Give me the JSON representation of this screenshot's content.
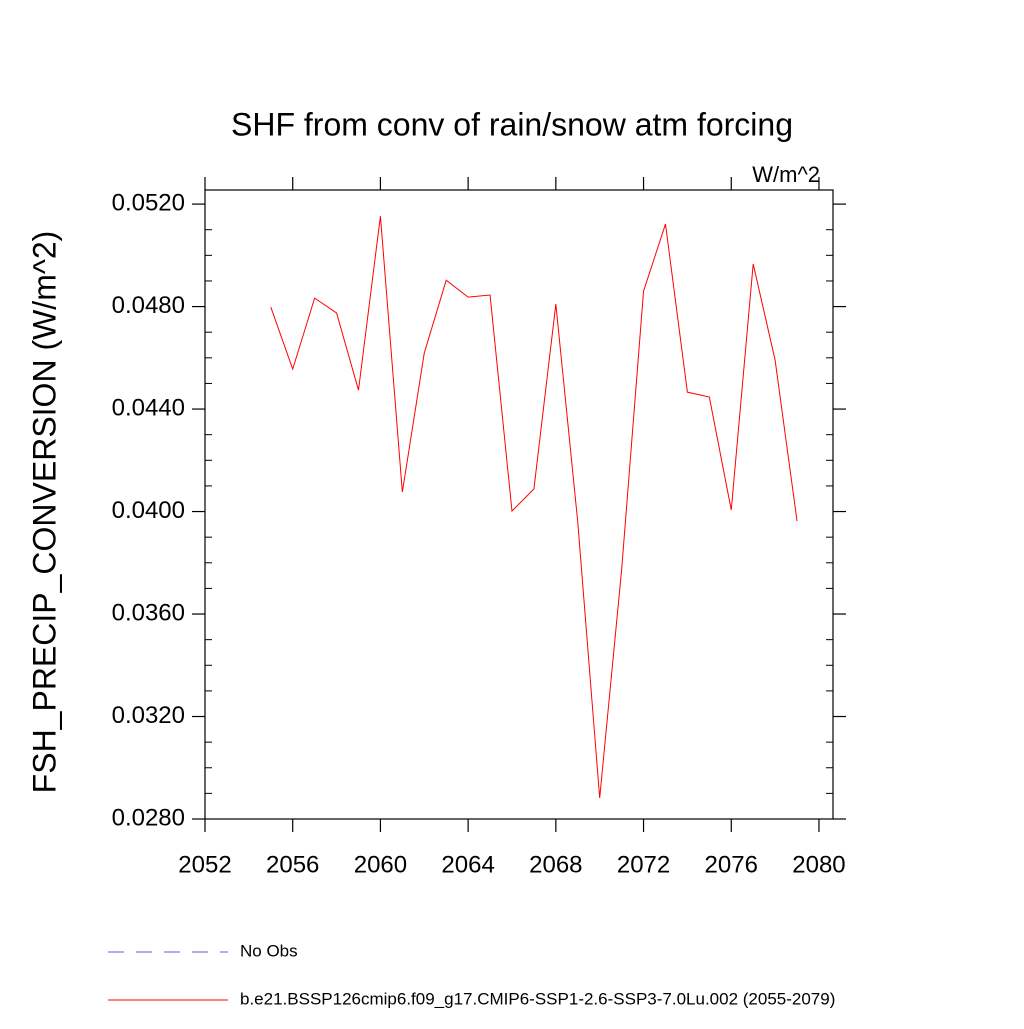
{
  "chart_data": {
    "type": "line",
    "title": "SHF from conv of rain/snow atm forcing",
    "subtitle": "W/m^2",
    "y_label": "FSH_PRECIP_CONVERSION  (W/m^2)",
    "x": [
      2055,
      2056,
      2057,
      2058,
      2059,
      2060,
      2061,
      2062,
      2063,
      2064,
      2065,
      2066,
      2067,
      2068,
      2069,
      2070,
      2071,
      2072,
      2073,
      2074,
      2075,
      2076,
      2077,
      2078,
      2079
    ],
    "series": [
      {
        "name": "No Obs",
        "color": "#6a5acd",
        "dashed": true,
        "values": [
          null,
          null,
          null,
          null,
          null,
          null,
          null,
          null,
          null,
          null,
          null,
          null,
          null,
          null,
          null,
          null,
          null,
          null,
          null,
          null,
          null,
          null,
          null,
          null,
          null
        ]
      },
      {
        "name": "b.e21.BSSP126cmip6.f09_g17.CMIP6-SSP1-2.6-SSP3-7.0Lu.002 (2055-2079)",
        "color": "#ff0000",
        "dashed": false,
        "values": [
          0.04798,
          0.04556,
          0.04833,
          0.04775,
          0.04474,
          0.05153,
          0.04076,
          0.04619,
          0.04903,
          0.04837,
          0.04845,
          0.04002,
          0.04088,
          0.0481,
          0.03959,
          0.02882,
          0.03772,
          0.0486,
          0.05122,
          0.04466,
          0.04447,
          0.04006,
          0.04966,
          0.04591,
          0.03963
        ]
      }
    ],
    "xlim": [
      2052,
      2080.64
    ],
    "xticks": [
      2052,
      2056,
      2060,
      2064,
      2068,
      2072,
      2076,
      2080
    ],
    "ylim": [
      0.028,
      0.05255
    ],
    "yticks": [
      {
        "value": 0.028,
        "label": "0.0280"
      },
      {
        "value": 0.032,
        "label": "0.0320"
      },
      {
        "value": 0.036,
        "label": "0.0360"
      },
      {
        "value": 0.04,
        "label": "0.0400"
      },
      {
        "value": 0.044,
        "label": "0.0440"
      },
      {
        "value": 0.048,
        "label": "0.0480"
      },
      {
        "value": 0.052,
        "label": "0.0520"
      }
    ],
    "grid": false
  }
}
